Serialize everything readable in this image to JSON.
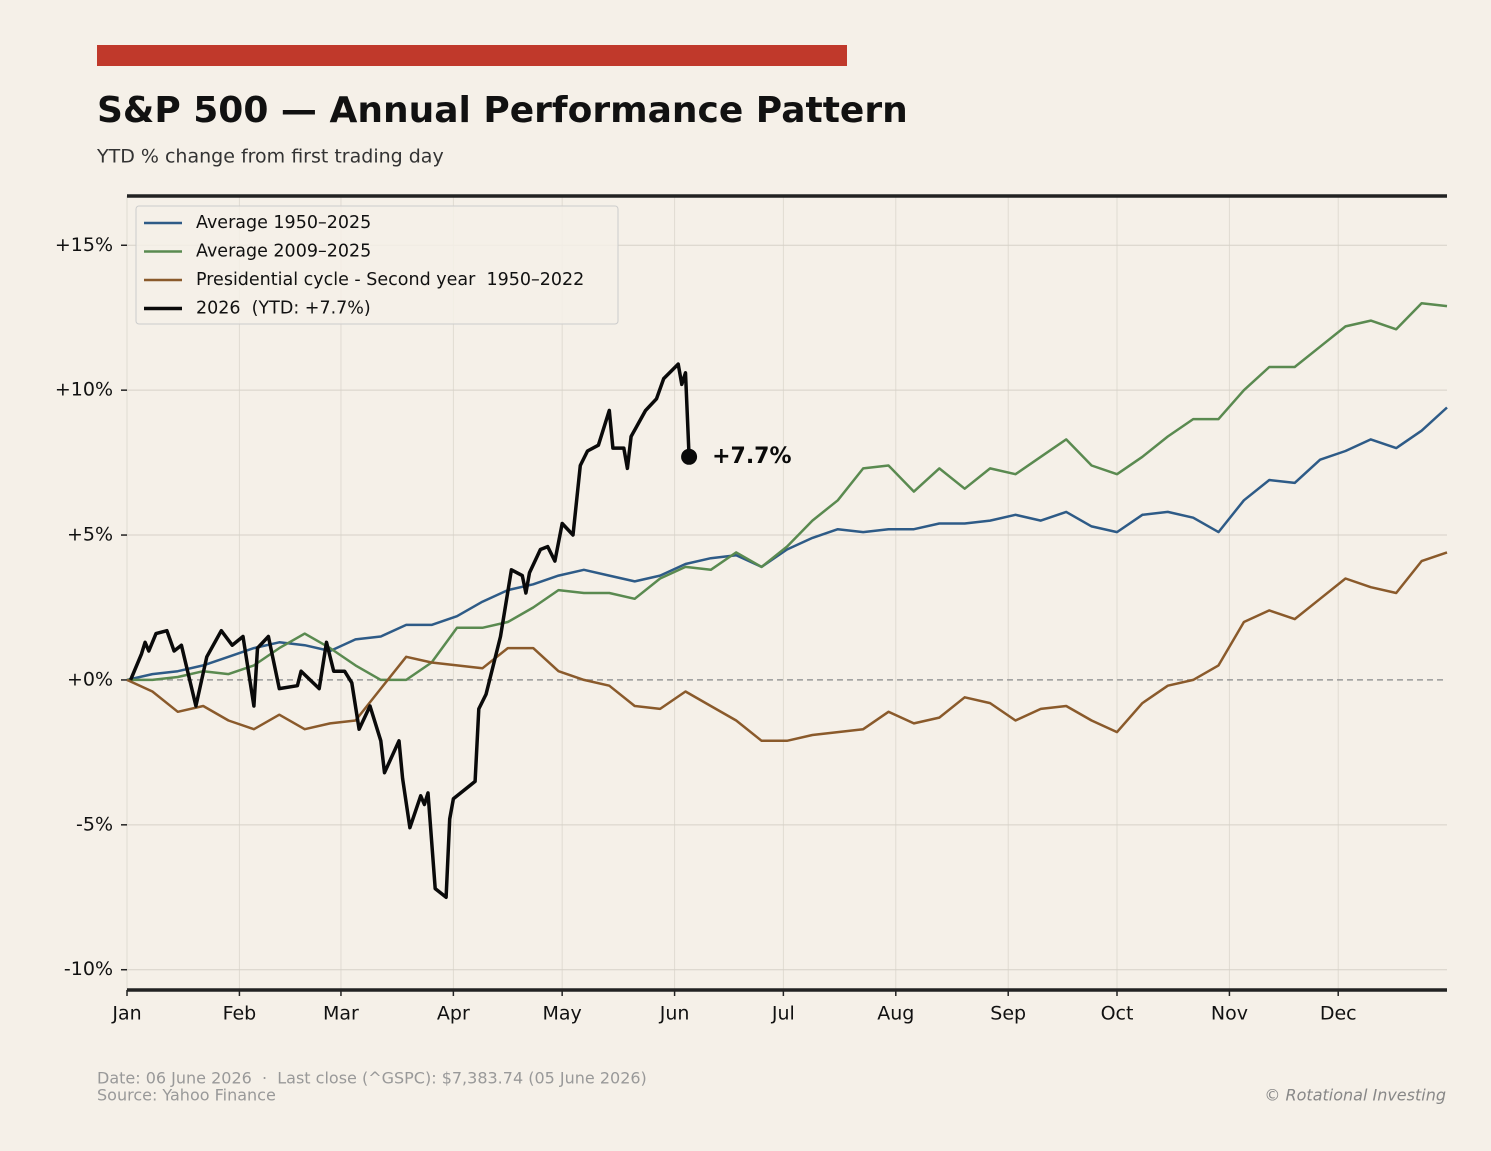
{
  "chart_data": {
    "type": "line",
    "title": "S&P 500 — Annual Performance Pattern",
    "subtitle": "YTD % change from first trading day",
    "xlim": [
      0,
      364
    ],
    "xticks": [
      {
        "value": 0,
        "label": "Jan"
      },
      {
        "value": 31,
        "label": "Feb"
      },
      {
        "value": 59,
        "label": "Mar"
      },
      {
        "value": 90,
        "label": "Apr"
      },
      {
        "value": 120,
        "label": "May"
      },
      {
        "value": 151,
        "label": "Jun"
      },
      {
        "value": 181,
        "label": "Jul"
      },
      {
        "value": 212,
        "label": "Aug"
      },
      {
        "value": 243,
        "label": "Sep"
      },
      {
        "value": 273,
        "label": "Oct"
      },
      {
        "value": 304,
        "label": "Nov"
      },
      {
        "value": 334,
        "label": "Dec"
      }
    ],
    "ylim": [
      -10.7,
      16.7
    ],
    "yticks": [
      {
        "value": -10,
        "label": "-10%"
      },
      {
        "value": -5,
        "label": "-5%"
      },
      {
        "value": 0,
        "label": "+0%"
      },
      {
        "value": 5,
        "label": "+5%"
      },
      {
        "value": 10,
        "label": "+10%"
      },
      {
        "value": 15,
        "label": "+15%"
      }
    ],
    "grid": true,
    "legend": "upper left",
    "series": [
      {
        "name": "Average 1950–2025",
        "color": "#2e5b87",
        "x": [
          0,
          7,
          14,
          21,
          28,
          35,
          42,
          49,
          56,
          63,
          70,
          77,
          84,
          91,
          98,
          105,
          112,
          119,
          126,
          133,
          140,
          147,
          154,
          161,
          168,
          175,
          182,
          189,
          196,
          203,
          210,
          217,
          224,
          231,
          238,
          245,
          252,
          259,
          266,
          273,
          280,
          287,
          294,
          301,
          308,
          315,
          322,
          329,
          336,
          343,
          350,
          357,
          364
        ],
        "values": [
          0,
          0.2,
          0.3,
          0.5,
          0.8,
          1.1,
          1.3,
          1.2,
          1.0,
          1.4,
          1.5,
          1.9,
          1.9,
          2.2,
          2.7,
          3.1,
          3.3,
          3.6,
          3.8,
          3.6,
          3.4,
          3.6,
          4.0,
          4.2,
          4.3,
          3.9,
          4.5,
          4.9,
          5.2,
          5.1,
          5.2,
          5.2,
          5.4,
          5.4,
          5.5,
          5.7,
          5.5,
          5.8,
          5.3,
          5.1,
          5.7,
          5.8,
          5.6,
          5.1,
          6.2,
          6.9,
          6.8,
          7.6,
          7.9,
          8.3,
          8.0,
          8.6,
          9.4
        ]
      },
      {
        "name": "Average 2009–2025",
        "color": "#5a8a50",
        "x": [
          0,
          7,
          14,
          21,
          28,
          35,
          42,
          49,
          56,
          63,
          70,
          77,
          84,
          91,
          98,
          105,
          112,
          119,
          126,
          133,
          140,
          147,
          154,
          161,
          168,
          175,
          182,
          189,
          196,
          203,
          210,
          217,
          224,
          231,
          238,
          245,
          252,
          259,
          266,
          273,
          280,
          287,
          294,
          301,
          308,
          315,
          322,
          329,
          336,
          343,
          350,
          357,
          364
        ],
        "values": [
          0,
          0.0,
          0.1,
          0.3,
          0.2,
          0.5,
          1.1,
          1.6,
          1.1,
          0.5,
          0.0,
          0.0,
          0.6,
          1.8,
          1.8,
          2.0,
          2.5,
          3.1,
          3.0,
          3.0,
          2.8,
          3.5,
          3.9,
          3.8,
          4.4,
          3.9,
          4.6,
          5.5,
          6.2,
          7.3,
          7.4,
          6.5,
          7.3,
          6.6,
          7.3,
          7.1,
          7.7,
          8.3,
          7.4,
          7.1,
          7.7,
          8.4,
          9.0,
          9.0,
          10.0,
          10.8,
          10.8,
          11.5,
          12.2,
          12.4,
          12.1,
          13.0,
          12.9
        ]
      },
      {
        "name": "Presidential cycle - Second year  1950–2022",
        "color": "#8a5a2b",
        "x": [
          0,
          7,
          14,
          21,
          28,
          35,
          42,
          49,
          56,
          63,
          70,
          77,
          84,
          91,
          98,
          105,
          112,
          119,
          126,
          133,
          140,
          147,
          154,
          161,
          168,
          175,
          182,
          189,
          196,
          203,
          210,
          217,
          224,
          231,
          238,
          245,
          252,
          259,
          266,
          273,
          280,
          287,
          294,
          301,
          308,
          315,
          322,
          329,
          336,
          343,
          350,
          357,
          364
        ],
        "values": [
          0,
          -0.4,
          -1.1,
          -0.9,
          -1.4,
          -1.7,
          -1.2,
          -1.7,
          -1.5,
          -1.4,
          -0.3,
          0.8,
          0.6,
          0.5,
          0.4,
          1.1,
          1.1,
          0.3,
          0.0,
          -0.2,
          -0.9,
          -1.0,
          -0.4,
          -0.9,
          -1.4,
          -2.1,
          -2.1,
          -1.9,
          -1.8,
          -1.7,
          -1.1,
          -1.5,
          -1.3,
          -0.6,
          -0.8,
          -1.4,
          -1.0,
          -0.9,
          -1.4,
          -1.8,
          -0.8,
          -0.2,
          0.0,
          0.5,
          2.0,
          2.4,
          2.1,
          2.8,
          3.5,
          3.2,
          3.0,
          4.1,
          4.4
        ]
      },
      {
        "name": "2026  (YTD: +7.7%)",
        "color": "#0a0a0a",
        "x": [
          1,
          4,
          5,
          6,
          8,
          11,
          13,
          15,
          19,
          22,
          26,
          29,
          32,
          35,
          36,
          39,
          42,
          47,
          48,
          53,
          55,
          57,
          60,
          62,
          64,
          67,
          70,
          71,
          75,
          76,
          78,
          81,
          82,
          83,
          85,
          88,
          89,
          90,
          96,
          97,
          99,
          103,
          106,
          109,
          110,
          111,
          114,
          116,
          118,
          120,
          123,
          125,
          127,
          130,
          133,
          134,
          137,
          138,
          139,
          143,
          146,
          148,
          152,
          153,
          154,
          155
        ],
        "values": [
          0,
          0.9,
          1.3,
          1.0,
          1.6,
          1.7,
          1.0,
          1.2,
          -0.9,
          0.8,
          1.7,
          1.2,
          1.5,
          -0.9,
          1.1,
          1.5,
          -0.3,
          -0.2,
          0.3,
          -0.3,
          1.3,
          0.3,
          0.3,
          -0.1,
          -1.7,
          -0.9,
          -2.1,
          -3.2,
          -2.1,
          -3.4,
          -5.1,
          -4.0,
          -4.3,
          -3.9,
          -7.2,
          -7.5,
          -4.8,
          -4.1,
          -3.5,
          -1.0,
          -0.5,
          1.5,
          3.8,
          3.6,
          3.0,
          3.7,
          4.5,
          4.6,
          4.1,
          5.4,
          5.0,
          7.4,
          7.9,
          8.1,
          9.3,
          8.0,
          8.0,
          7.3,
          8.4,
          9.3,
          9.7,
          10.4,
          10.9,
          10.2,
          10.6,
          7.7
        ]
      }
    ],
    "annotation": "+7.7%",
    "footer": {
      "date": "Date: 06 June 2026  ·  Last close (^GSPC): $7,383.74 (05 June 2026)",
      "source": "Source: Yahoo Finance",
      "credit": "© Rotational Investing"
    }
  }
}
